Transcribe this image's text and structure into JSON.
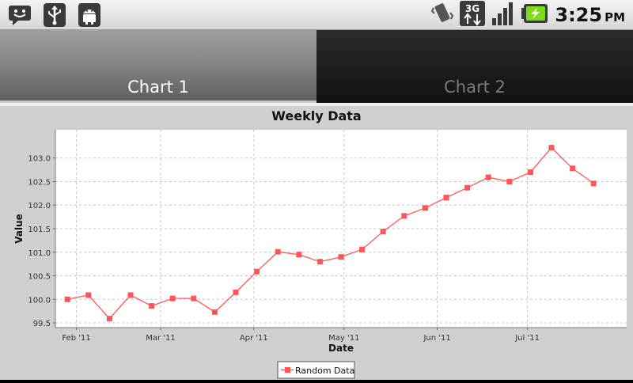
{
  "status_bar": {
    "left_icons": [
      "messaging-icon",
      "usb-icon",
      "android-debug-icon"
    ],
    "right_icons": [
      "vibrate-icon",
      "3g-data-icon",
      "signal-icon",
      "battery-charging-icon"
    ],
    "network_label": "3G",
    "time": "3:25",
    "ampm": "PM"
  },
  "tabs": [
    {
      "label": "Chart 1",
      "active": true
    },
    {
      "label": "Chart 2",
      "active": false
    }
  ],
  "colors": {
    "series": "#ff5555",
    "plot_bg": "#ffffff",
    "panel_bg": "#cfcfcf",
    "grid": "#c8c8c8"
  },
  "chart_data": {
    "type": "line",
    "title": "Weekly Data",
    "xlabel": "Date",
    "ylabel": "Value",
    "x_ticks": [
      "Feb '11",
      "Mar '11",
      "Apr '11",
      "May '11",
      "Jun '11",
      "Jul '11"
    ],
    "y_ticks": [
      "99.5",
      "100.0",
      "100.5",
      "101.0",
      "101.5",
      "102.0",
      "102.5",
      "103.0"
    ],
    "ylim": [
      99.4,
      103.6
    ],
    "xlim": [
      "2011-01-25",
      "2011-08-03"
    ],
    "grid": true,
    "legend_position": "bottom-center",
    "series": [
      {
        "name": "Random Data",
        "marker": "square",
        "x": [
          "2011-01-29",
          "2011-02-05",
          "2011-02-12",
          "2011-02-19",
          "2011-02-26",
          "2011-03-05",
          "2011-03-12",
          "2011-03-19",
          "2011-03-26",
          "2011-04-02",
          "2011-04-09",
          "2011-04-16",
          "2011-04-23",
          "2011-04-30",
          "2011-05-07",
          "2011-05-14",
          "2011-05-21",
          "2011-05-28",
          "2011-06-04",
          "2011-06-11",
          "2011-06-18",
          "2011-06-25",
          "2011-07-02",
          "2011-07-09",
          "2011-07-16",
          "2011-07-23"
        ],
        "y": [
          100.0,
          100.09,
          99.59,
          100.09,
          99.86,
          100.02,
          100.02,
          99.73,
          100.15,
          100.59,
          101.01,
          100.95,
          100.8,
          100.9,
          101.06,
          101.44,
          101.77,
          101.94,
          102.16,
          102.37,
          102.59,
          102.5,
          102.7,
          103.22,
          102.78,
          102.46
        ]
      }
    ]
  }
}
